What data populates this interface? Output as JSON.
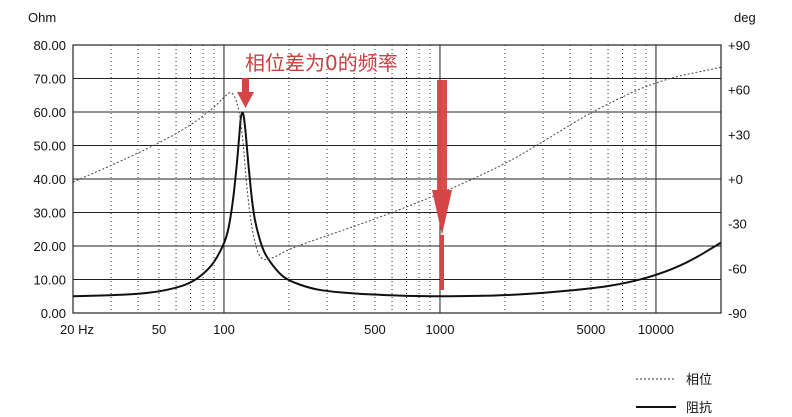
{
  "chart_data": {
    "type": "line",
    "left_unit": "Ohm",
    "right_unit": "deg",
    "x_scale": "log",
    "xlim": [
      20,
      20000
    ],
    "ylim_left": [
      0,
      80
    ],
    "ylim_right": [
      -90,
      90
    ],
    "grid": true,
    "x_tick_labels": [
      {
        "value": 20,
        "label": "20 Hz"
      },
      {
        "value": 50,
        "label": "50"
      },
      {
        "value": 100,
        "label": "100"
      },
      {
        "value": 500,
        "label": "500"
      },
      {
        "value": 1000,
        "label": "1000"
      },
      {
        "value": 5000,
        "label": "5000"
      },
      {
        "value": 10000,
        "label": "10000"
      }
    ],
    "y_left_tick_labels": [
      {
        "value": 80,
        "label": "80.00"
      },
      {
        "value": 70,
        "label": "70.00"
      },
      {
        "value": 60,
        "label": "60.00"
      },
      {
        "value": 50,
        "label": "50.00"
      },
      {
        "value": 40,
        "label": "40.00"
      },
      {
        "value": 30,
        "label": "30.00"
      },
      {
        "value": 20,
        "label": "20.00"
      },
      {
        "value": 10,
        "label": "10.00"
      },
      {
        "value": 0,
        "label": "0.00"
      }
    ],
    "y_right_tick_labels": [
      {
        "value": 90,
        "label": "+90"
      },
      {
        "value": 60,
        "label": "+60"
      },
      {
        "value": 30,
        "label": "+30"
      },
      {
        "value": 0,
        "label": "+0"
      },
      {
        "value": -30,
        "label": "-30"
      },
      {
        "value": -60,
        "label": "-60"
      },
      {
        "value": -90,
        "label": "-90"
      }
    ],
    "series": [
      {
        "name": "阻抗",
        "axis": "left",
        "style": "solid",
        "x": [
          20,
          30,
          40,
          50,
          60,
          70,
          80,
          90,
          100,
          105,
          110,
          115,
          118,
          120,
          123,
          126,
          130,
          135,
          140,
          150,
          160,
          180,
          200,
          250,
          300,
          400,
          500,
          700,
          1000,
          1500,
          2000,
          3000,
          5000,
          7000,
          10000,
          14000,
          20000
        ],
        "y": [
          5.0,
          5.3,
          5.7,
          6.4,
          7.5,
          9.0,
          11.5,
          15.0,
          20.5,
          25.0,
          33.0,
          45.0,
          54.0,
          59.5,
          60.0,
          54.0,
          43.5,
          33.0,
          26.5,
          19.5,
          16.0,
          11.8,
          9.6,
          7.4,
          6.5,
          5.8,
          5.5,
          5.1,
          5.0,
          5.1,
          5.3,
          6.0,
          7.3,
          8.7,
          11.2,
          15.0,
          21.0
        ]
      },
      {
        "name": "相位",
        "axis": "right",
        "style": "dashed",
        "x": [
          20,
          30,
          50,
          70,
          90,
          100,
          110,
          120,
          130,
          140,
          150,
          170,
          200,
          300,
          500,
          1000,
          2000,
          3000,
          5000,
          10000,
          20000
        ],
        "y": [
          -2,
          9,
          24,
          36,
          48,
          55,
          60,
          42,
          -20,
          -46,
          -55,
          -53,
          -47,
          -38,
          -27,
          -10,
          10,
          25,
          45,
          66,
          75
        ]
      }
    ],
    "annotations": [
      {
        "text": "相位差为0的频率",
        "color": "#c94040"
      }
    ],
    "legend": {
      "placement": "bottom-right",
      "entries": [
        "相位",
        "阻抗"
      ]
    }
  }
}
